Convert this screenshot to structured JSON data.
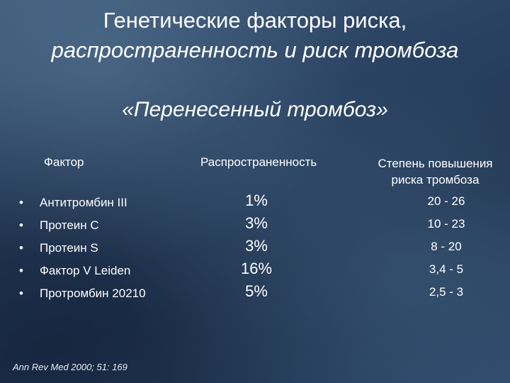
{
  "slide": {
    "title_line1": "Генетические факторы риска,",
    "title_line2": "распространенность и риск тромбоза",
    "subtitle": "«Перенесенный тромбоз»"
  },
  "table": {
    "headers": {
      "factor": "Фактор",
      "prevalence": "Распространенность",
      "risk_line1": "Степень повышения",
      "risk_line2": "риска тромбоза"
    },
    "rows": [
      {
        "bullet": "•",
        "factor": "Антитромбин III",
        "prevalence": "1%",
        "risk": "20 - 26"
      },
      {
        "bullet": "•",
        "factor": "Протеин С",
        "prevalence": "3%",
        "risk": "10 - 23"
      },
      {
        "bullet": "•",
        "factor": "Протеин S",
        "prevalence": "3%",
        "risk": "8 - 20"
      },
      {
        "bullet": "•",
        "factor": "Фактор V Leiden",
        "prevalence": "16%",
        "risk": "3,4 - 5"
      },
      {
        "bullet": "•",
        "factor": "Протромбин 20210",
        "prevalence": "5%",
        "risk": "2,5 - 3"
      }
    ]
  },
  "citation": "Ann Rev Med 2000; 51: 169"
}
